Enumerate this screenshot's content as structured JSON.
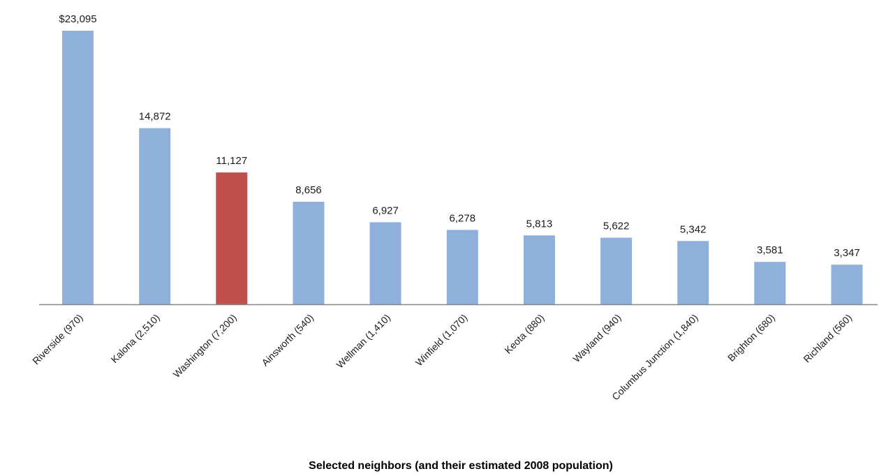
{
  "chart_data": {
    "type": "bar",
    "title": "",
    "xlabel": "Selected neighbors (and their estimated 2008 population)",
    "ylabel": "",
    "ylim": [
      0,
      23095
    ],
    "grid": false,
    "legend": "none",
    "categories": [
      "Riverside (970)",
      "Kalona (2,510)",
      "Washington (7,200)",
      "Ainsworth (540)",
      "Wellman (1,410)",
      "Winfield (1,070)",
      "Keota (880)",
      "Wayland (940)",
      "Columbus Junction (1,840)",
      "Brighton (680)",
      "Richland (560)"
    ],
    "values": [
      23095,
      14872,
      11127,
      8656,
      6927,
      6278,
      5813,
      5622,
      5342,
      3581,
      3347
    ],
    "value_labels": [
      "$23,095",
      "14,872",
      "11,127",
      "8,656",
      "6,927",
      "6,278",
      "5,813",
      "5,622",
      "5,342",
      "3,581",
      "3,347"
    ],
    "highlight_index": 2,
    "colors": {
      "bar": "#8EB0DA",
      "highlight": "#C0504D",
      "axis": "#868686"
    }
  }
}
